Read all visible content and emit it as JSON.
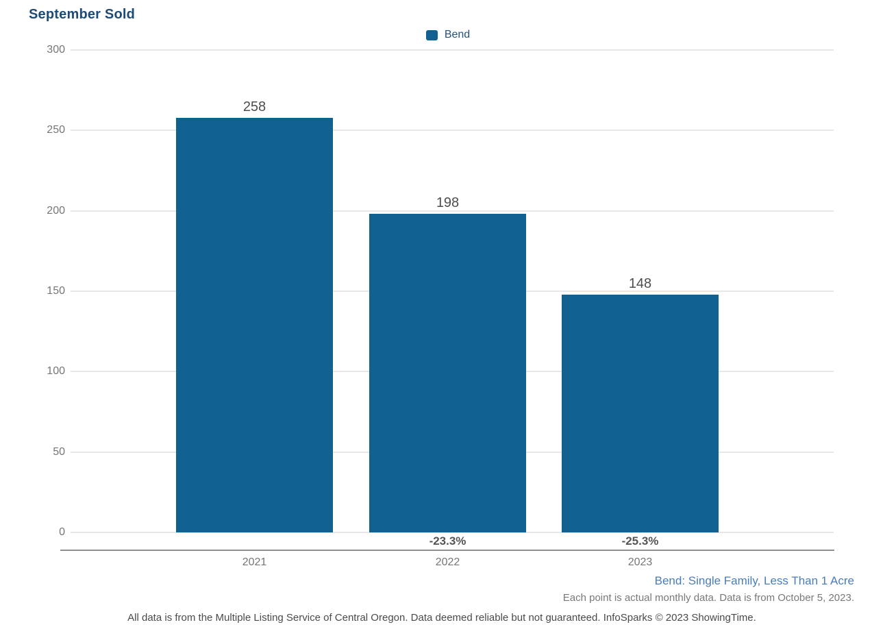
{
  "chart_data": {
    "type": "bar",
    "title": "September Sold",
    "categories": [
      "2021",
      "2022",
      "2023"
    ],
    "series": [
      {
        "name": "Bend",
        "values": [
          258,
          198,
          148
        ]
      }
    ],
    "value_labels": [
      "258",
      "198",
      "148"
    ],
    "pct_change_labels": [
      null,
      "-23.3%",
      "-25.3%"
    ],
    "ylim": [
      0,
      300
    ],
    "yticks": [
      300,
      250,
      200,
      150,
      100,
      50,
      0
    ],
    "grid": "horizontal",
    "legend_position": "top-center",
    "bar_color": "#10618f"
  },
  "legend": {
    "label": "Bend",
    "swatch_color": "#10618f"
  },
  "footnotes": {
    "series_description": "Bend: Single Family, Less Than 1 Acre",
    "data_note": "Each point is actual monthly data. Data is from October 5, 2023.",
    "disclaimer": "All data is from the Multiple Listing Service of Central Oregon. Data deemed reliable but not guaranteed. InfoSparks © 2023 ShowingTime."
  },
  "colors": {
    "title": "#1d4b75",
    "bar": "#10618f",
    "axis_line": "#8f8f8f",
    "gridline": "#e7e7e7",
    "tick_text": "#757575",
    "value_text": "#4d4d4d",
    "series_footnote": "#4a7cb9"
  }
}
